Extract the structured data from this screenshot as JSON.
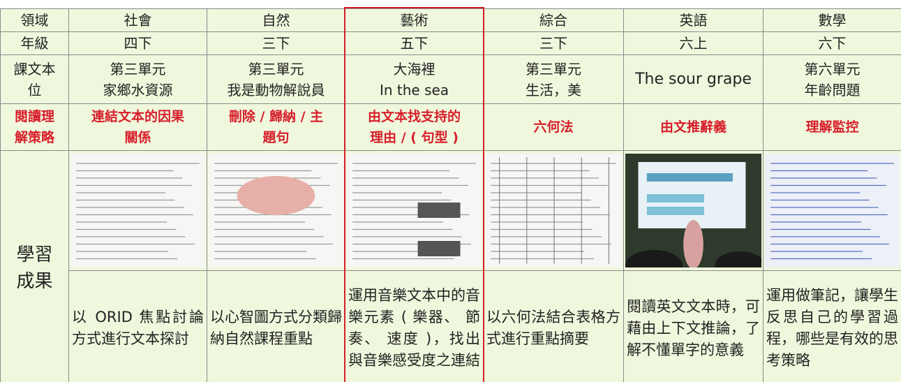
{
  "table": {
    "header": [
      "領域",
      "社會",
      "自然",
      "藝術",
      "綜合",
      "英語",
      "數學"
    ],
    "rows": [
      [
        "年級",
        "四下",
        "三下",
        "五下",
        "三下",
        "六上",
        "六下"
      ],
      [
        [
          "課文本",
          "位"
        ],
        [
          "第三單元",
          "家鄉水資源"
        ],
        [
          "第三單元",
          "我是動物解說員"
        ],
        [
          "大海裡",
          "In the sea"
        ],
        [
          "第三單元",
          "生活，美"
        ],
        "The sour grape",
        [
          "第六單元",
          "年齡問題"
        ]
      ],
      [
        [
          "閱讀理",
          "解策略"
        ],
        [
          "連結文本的因果",
          "關係"
        ],
        [
          "刪除 / 歸納 / 主",
          "題句"
        ],
        [
          "由文本找支持的",
          "理由 / ( 句型 )"
        ],
        "六何法",
        "由文推辭義",
        "理解監控"
      ]
    ],
    "outcome_label": [
      "學習",
      "成果"
    ],
    "descriptions": [
      "以 ORID 焦點討論方式進行文本探討",
      "以心智圖方式分類歸納自然課程重點",
      "運用音樂文本中的音樂元素 ( 樂器、 節 奏、 速度 )，找出與音樂感受度之連結",
      "以六何法結合表格方式進行重點摘要",
      "閱讀英文文本時，可藉由上下文推論，了解不懂單字的意義",
      "運用做筆記，讓學生反思自己的學習過程，哪些是有效的思考策略"
    ]
  }
}
